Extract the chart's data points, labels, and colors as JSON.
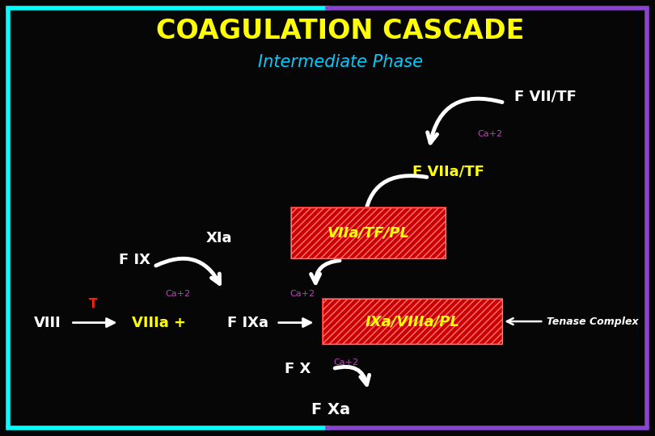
{
  "bg_color": "#060606",
  "title": "COAGULATION CASCADE",
  "subtitle": "Intermediate Phase",
  "title_color": "#ffff00",
  "subtitle_color": "#00ccff",
  "white": "#ffffff",
  "yellow": "#ffff00",
  "red_box": "#cc0000",
  "magenta": "#bb44bb",
  "red_text": "#ff2200",
  "border_left": "#00ffff",
  "border_right": "#8844cc",
  "labels": {
    "FVIITF": "F VII/TF",
    "FVIIaTF": "F VIIa/TF",
    "VIIaTFPL": "VIIa/TF/PL",
    "XIa": "XIa",
    "FIX": "F IX",
    "VIII": "VIII",
    "T": "T",
    "VIIIa": "VIIIa +",
    "FIXa": "F IXa",
    "IXaVIIIaPL": "IXa/VIIIa/PL",
    "Tenase": "Tenase Complex",
    "FX": "F X",
    "FXa": "F Xa",
    "Ca2": "Ca+2"
  }
}
